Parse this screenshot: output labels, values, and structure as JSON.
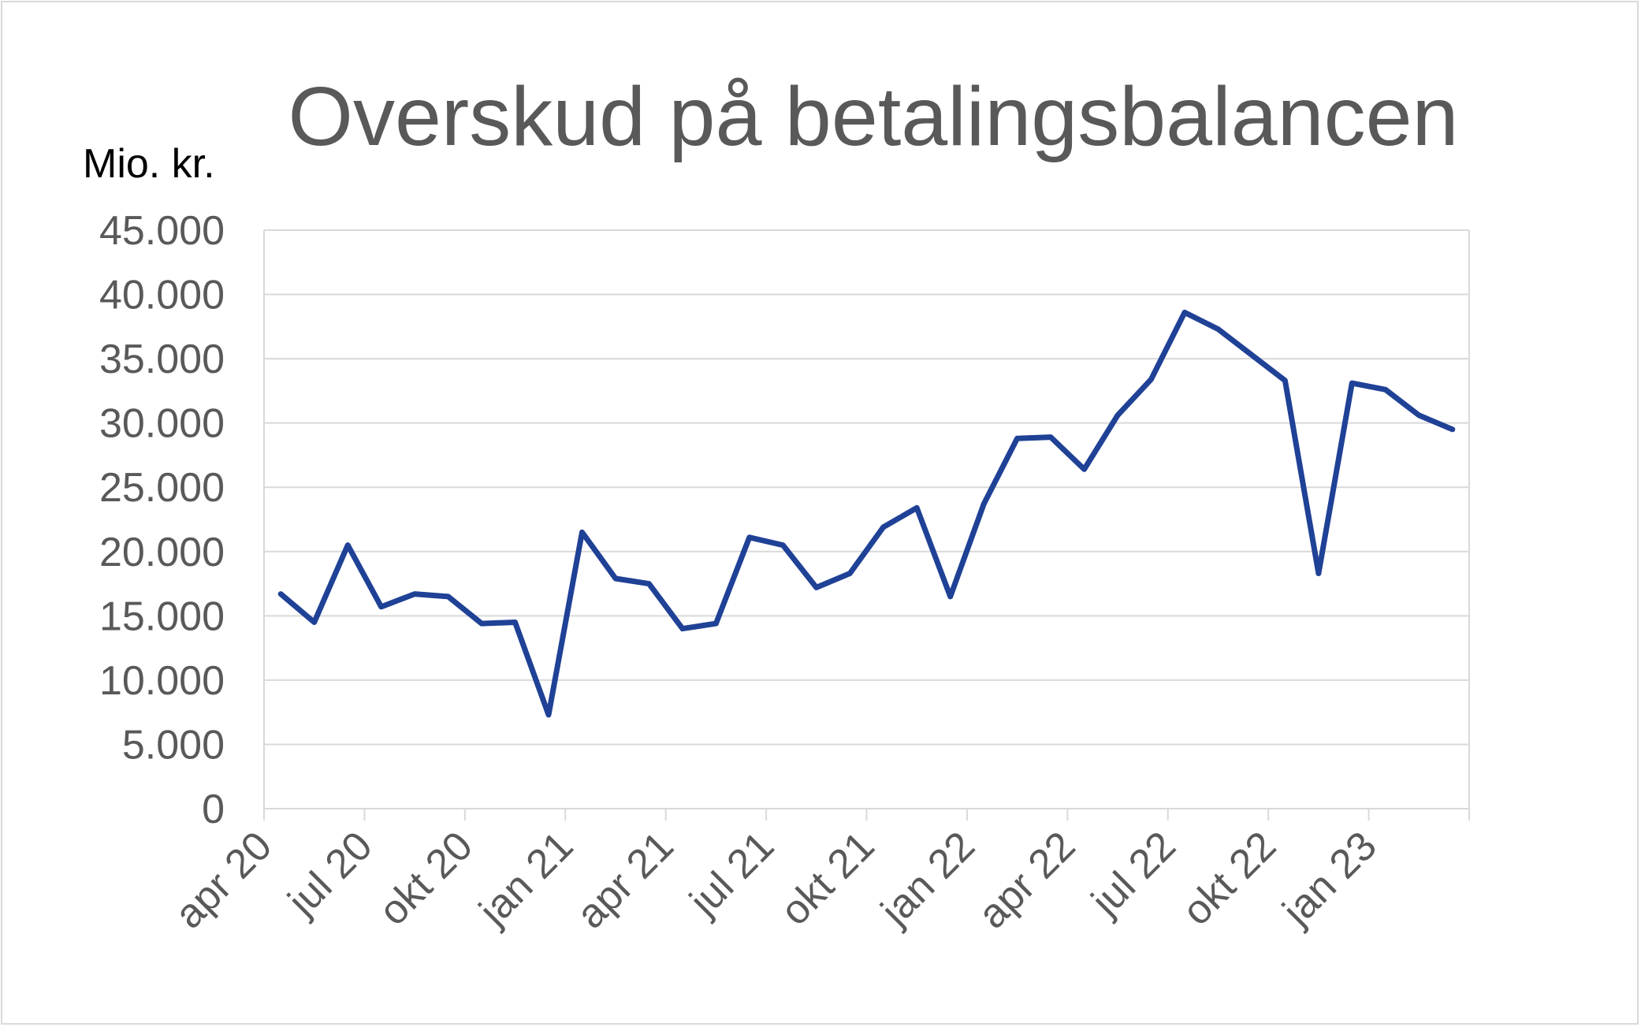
{
  "chart_data": {
    "type": "line",
    "title": "Overskud på betalingsbalancen",
    "ylabel": "Mio. kr.",
    "xlabel": "",
    "ylim": [
      0,
      45000
    ],
    "yticks": [
      0,
      5000,
      10000,
      15000,
      20000,
      25000,
      30000,
      35000,
      40000,
      45000
    ],
    "ytick_labels": [
      "0",
      "5.000",
      "10.000",
      "15.000",
      "20.000",
      "25.000",
      "30.000",
      "35.000",
      "40.000",
      "45.000"
    ],
    "x": [
      "apr 20",
      "maj 20",
      "jun 20",
      "jul 20",
      "aug 20",
      "sep 20",
      "okt 20",
      "nov 20",
      "dec 20",
      "jan 21",
      "feb 21",
      "mar 21",
      "apr 21",
      "maj 21",
      "jun 21",
      "jul 21",
      "aug 21",
      "sep 21",
      "okt 21",
      "nov 21",
      "dec 21",
      "jan 22",
      "feb 22",
      "mar 22",
      "apr 22",
      "maj 22",
      "jun 22",
      "jul 22",
      "aug 22",
      "sep 22",
      "okt 22",
      "nov 22",
      "dec 22",
      "jan 23",
      "feb 23",
      "mar 23"
    ],
    "xtick_labels": [
      "apr 20",
      "jul 20",
      "okt 20",
      "jan 21",
      "apr 21",
      "jul 21",
      "okt 21",
      "jan 22",
      "apr 22",
      "jul 22",
      "okt 22",
      "jan 23"
    ],
    "series": [
      {
        "values": [
          16700,
          14500,
          20500,
          15700,
          16700,
          16500,
          14400,
          14500,
          7300,
          21500,
          17900,
          17500,
          14000,
          14400,
          21100,
          20500,
          17200,
          18300,
          21900,
          23400,
          16500,
          23700,
          28800,
          28900,
          26400,
          30600,
          33400,
          38600,
          37300,
          35300,
          33300,
          18300,
          33100,
          32600,
          30600,
          29500
        ],
        "color": "#1f4196"
      }
    ],
    "grid": true,
    "legend": "none"
  },
  "colors": {
    "line": "#1f4196",
    "grid": "#d9d9d9",
    "text": "#595959"
  }
}
